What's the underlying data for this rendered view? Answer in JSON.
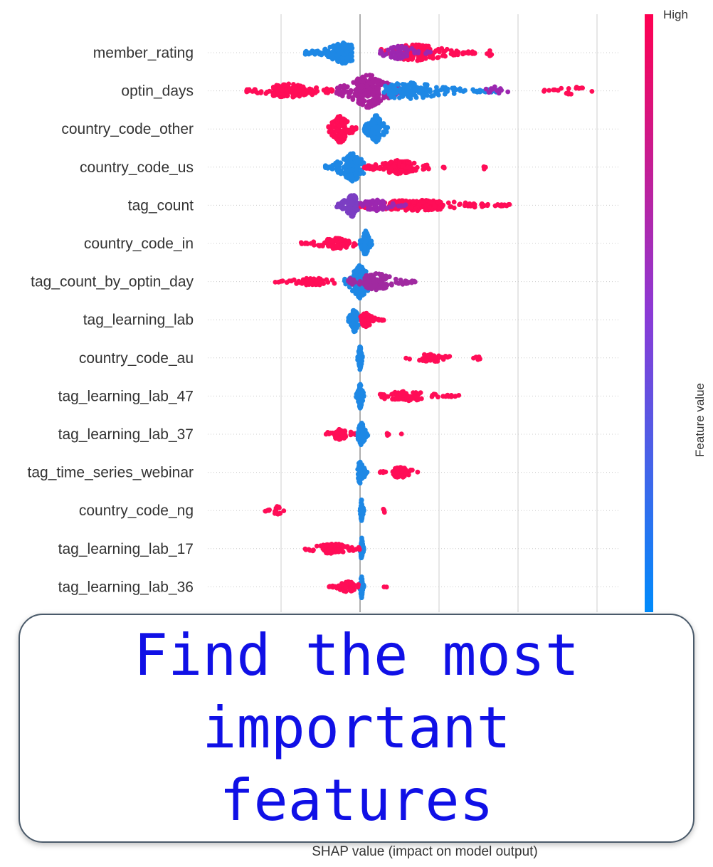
{
  "chart_data": {
    "type": "scatter",
    "subtype": "beeswarm",
    "xlabel": "SHAP value (impact on model output)",
    "features": [
      "member_rating",
      "optin_days",
      "country_code_other",
      "country_code_us",
      "tag_count",
      "country_code_in",
      "tag_count_by_optin_day",
      "tag_learning_lab",
      "country_code_au",
      "tag_learning_lab_47",
      "tag_learning_lab_37",
      "tag_time_series_webinar",
      "country_code_ng",
      "tag_learning_lab_17",
      "tag_learning_lab_36"
    ],
    "xlim": [
      -1.0,
      3.3
    ],
    "gridlines_x": [
      -1.0,
      0.0,
      1.0,
      2.0,
      3.0
    ],
    "zero_line": 0.0,
    "colorbar": {
      "label": "Feature value",
      "high_label": "High",
      "low_color": "#008bfb",
      "high_color": "#ff0051"
    },
    "clusters": [
      [
        {
          "x0": -0.7,
          "x1": -0.1,
          "core": -0.2,
          "color": "#1e88e5",
          "spread": 16,
          "n": 200
        },
        {
          "x0": 0.25,
          "x1": 1.5,
          "core": 0.7,
          "color": "#ff0d57",
          "spread": 12,
          "n": 170
        },
        {
          "x0": 0.25,
          "x1": 0.9,
          "core": 0.5,
          "color": "#9c27b0",
          "spread": 10,
          "n": 60
        },
        {
          "x0": 1.6,
          "x1": 1.7,
          "core": 1.65,
          "color": "#ff0d57",
          "spread": 5,
          "n": 6
        }
      ],
      [
        {
          "x0": -1.45,
          "x1": -0.3,
          "core": -0.9,
          "color": "#ff0d57",
          "spread": 10,
          "n": 160
        },
        {
          "x0": -0.3,
          "x1": 0.5,
          "core": 0.1,
          "color": "#a9229c",
          "spread": 24,
          "n": 240
        },
        {
          "x0": 0.3,
          "x1": 1.8,
          "core": 0.6,
          "color": "#1e88e5",
          "spread": 12,
          "n": 160
        },
        {
          "x0": 1.5,
          "x1": 1.9,
          "core": 1.7,
          "color": "#9c27b0",
          "spread": 6,
          "n": 12
        },
        {
          "x0": 2.3,
          "x1": 3.05,
          "core": 2.7,
          "color": "#ff0d57",
          "spread": 6,
          "n": 20
        }
      ],
      [
        {
          "x0": -0.4,
          "x1": -0.05,
          "core": -0.25,
          "color": "#ff0d57",
          "spread": 20,
          "n": 140
        },
        {
          "x0": 0.05,
          "x1": 0.35,
          "core": 0.2,
          "color": "#1e88e5",
          "spread": 20,
          "n": 130
        }
      ],
      [
        {
          "x0": -0.45,
          "x1": 0.05,
          "core": -0.1,
          "color": "#1e88e5",
          "spread": 20,
          "n": 170
        },
        {
          "x0": 0.05,
          "x1": 0.9,
          "core": 0.5,
          "color": "#ff0d57",
          "spread": 10,
          "n": 170
        },
        {
          "x0": 1.05,
          "x1": 1.1,
          "core": 1.07,
          "color": "#ff0d57",
          "spread": 3,
          "n": 3
        },
        {
          "x0": 1.55,
          "x1": 1.6,
          "core": 1.57,
          "color": "#ff0d57",
          "spread": 3,
          "n": 3
        }
      ],
      [
        {
          "x0": -0.3,
          "x1": 0.0,
          "core": -0.1,
          "color": "#7b3ec3",
          "spread": 16,
          "n": 130
        },
        {
          "x0": 0.0,
          "x1": 1.9,
          "core": 0.7,
          "color": "#ff0d57",
          "spread": 8,
          "n": 240
        },
        {
          "x0": 0.0,
          "x1": 0.6,
          "core": 0.2,
          "color": "#9c27b0",
          "spread": 8,
          "n": 60
        }
      ],
      [
        {
          "x0": -0.75,
          "x1": -0.05,
          "core": -0.3,
          "color": "#ff0d57",
          "spread": 8,
          "n": 90
        },
        {
          "x0": 0.0,
          "x1": 0.15,
          "core": 0.07,
          "color": "#1e88e5",
          "spread": 18,
          "n": 110
        }
      ],
      [
        {
          "x0": -1.1,
          "x1": -0.3,
          "core": -0.6,
          "color": "#ff0d57",
          "spread": 6,
          "n": 60
        },
        {
          "x0": -0.2,
          "x1": 0.15,
          "core": 0.0,
          "color": "#1e88e5",
          "spread": 24,
          "n": 180
        },
        {
          "x0": -0.15,
          "x1": 0.7,
          "core": 0.2,
          "color": "#a02aa0",
          "spread": 12,
          "n": 130
        }
      ],
      [
        {
          "x0": -0.15,
          "x1": 0.0,
          "core": -0.07,
          "color": "#1e88e5",
          "spread": 18,
          "n": 100
        },
        {
          "x0": 0.0,
          "x1": 0.3,
          "core": 0.07,
          "color": "#ff0d57",
          "spread": 10,
          "n": 70
        }
      ],
      [
        {
          "x0": -0.03,
          "x1": 0.03,
          "core": 0.0,
          "color": "#1e88e5",
          "spread": 18,
          "n": 80
        },
        {
          "x0": 0.55,
          "x1": 1.2,
          "core": 0.9,
          "color": "#ff0d57",
          "spread": 6,
          "n": 40
        },
        {
          "x0": 1.4,
          "x1": 1.6,
          "core": 1.5,
          "color": "#ff0d57",
          "spread": 3,
          "n": 6
        }
      ],
      [
        {
          "x0": -0.05,
          "x1": 0.05,
          "core": 0.0,
          "color": "#1e88e5",
          "spread": 18,
          "n": 80
        },
        {
          "x0": 0.25,
          "x1": 1.3,
          "core": 0.6,
          "color": "#ff0d57",
          "spread": 7,
          "n": 80
        }
      ],
      [
        {
          "x0": -0.45,
          "x1": -0.05,
          "core": -0.25,
          "color": "#ff0d57",
          "spread": 8,
          "n": 60
        },
        {
          "x0": -0.03,
          "x1": 0.1,
          "core": 0.02,
          "color": "#1e88e5",
          "spread": 18,
          "n": 80
        },
        {
          "x0": 0.2,
          "x1": 0.6,
          "core": 0.4,
          "color": "#ff0d57",
          "spread": 2,
          "n": 4
        }
      ],
      [
        {
          "x0": -0.05,
          "x1": 0.1,
          "core": 0.0,
          "color": "#1e88e5",
          "spread": 16,
          "n": 70
        },
        {
          "x0": 0.25,
          "x1": 0.75,
          "core": 0.5,
          "color": "#ff0d57",
          "spread": 8,
          "n": 60
        }
      ],
      [
        {
          "x0": 0.0,
          "x1": 0.05,
          "core": 0.02,
          "color": "#1e88e5",
          "spread": 16,
          "n": 60
        },
        {
          "x0": -1.2,
          "x1": -0.95,
          "core": -1.05,
          "color": "#ff0d57",
          "spread": 6,
          "n": 18
        },
        {
          "x0": 0.25,
          "x1": 0.35,
          "core": 0.3,
          "color": "#ff0d57",
          "spread": 3,
          "n": 3
        }
      ],
      [
        {
          "x0": 0.0,
          "x1": 0.05,
          "core": 0.02,
          "color": "#1e88e5",
          "spread": 16,
          "n": 60
        },
        {
          "x0": -0.7,
          "x1": 0.0,
          "core": -0.35,
          "color": "#ff0d57",
          "spread": 8,
          "n": 90
        }
      ],
      [
        {
          "x0": 0.0,
          "x1": 0.05,
          "core": 0.02,
          "color": "#1e88e5",
          "spread": 16,
          "n": 60
        },
        {
          "x0": -0.4,
          "x1": 0.0,
          "core": -0.15,
          "color": "#ff0d57",
          "spread": 8,
          "n": 60
        },
        {
          "x0": 0.3,
          "x1": 0.35,
          "core": 0.32,
          "color": "#ff0d57",
          "spread": 2,
          "n": 2
        }
      ]
    ]
  },
  "callout": {
    "text": "Find the most important features"
  }
}
